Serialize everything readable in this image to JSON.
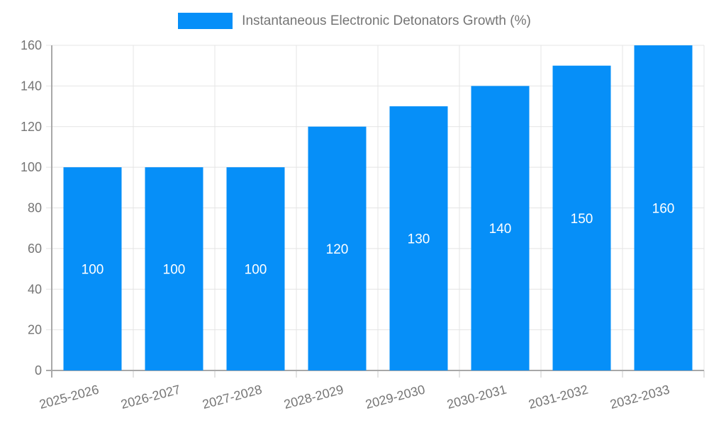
{
  "legend": {
    "label": "Instantaneous Electronic Detonators Growth (%)"
  },
  "chart_data": {
    "type": "bar",
    "title": "Instantaneous Electronic Detonators Growth (%)",
    "categories": [
      "2025-2026",
      "2026-2027",
      "2027-2028",
      "2028-2029",
      "2029-2030",
      "2030-2031",
      "2031-2032",
      "2032-2033"
    ],
    "values": [
      100,
      100,
      100,
      120,
      130,
      140,
      150,
      160
    ],
    "xlabel": "",
    "ylabel": "",
    "ylim": [
      0,
      160
    ],
    "yticks": [
      0,
      20,
      40,
      60,
      80,
      100,
      120,
      140,
      160
    ],
    "grid": true,
    "legend_position": "top-center",
    "bar_color": "#068FF8",
    "bar_label_color": "#ffffff",
    "axis_line_color": "#a8a8a8",
    "tick_color": "#c8c8c8",
    "grid_color": "#e4e4e4",
    "text_color": "#757575"
  }
}
